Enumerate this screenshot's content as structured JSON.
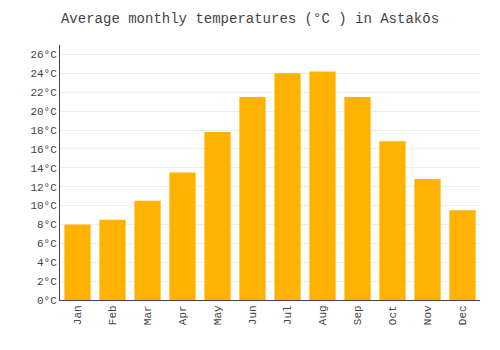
{
  "chart_data": {
    "type": "bar",
    "title": "Average monthly temperatures (°C ) in Astakōs",
    "categories": [
      "Jan",
      "Feb",
      "Mar",
      "Apr",
      "May",
      "Jun",
      "Jul",
      "Aug",
      "Sep",
      "Oct",
      "Nov",
      "Dec"
    ],
    "values": [
      8.0,
      8.5,
      10.5,
      13.5,
      17.8,
      21.5,
      24.0,
      24.2,
      21.5,
      16.8,
      12.8,
      9.5
    ],
    "color": "#FFB300",
    "ylim": [
      0,
      27
    ],
    "yticks": [
      {
        "value": 0,
        "label": "0°C"
      },
      {
        "value": 2,
        "label": "2°C"
      },
      {
        "value": 4,
        "label": "4°C"
      },
      {
        "value": 6,
        "label": "6°C"
      },
      {
        "value": 8,
        "label": "8°C"
      },
      {
        "value": 10,
        "label": "10°C"
      },
      {
        "value": 12,
        "label": "12°C"
      },
      {
        "value": 14,
        "label": "14°C"
      },
      {
        "value": 16,
        "label": "16°C"
      },
      {
        "value": 18,
        "label": "18°C"
      },
      {
        "value": 20,
        "label": "20°C"
      },
      {
        "value": 22,
        "label": "22°C"
      },
      {
        "value": 24,
        "label": "24°C"
      },
      {
        "value": 26,
        "label": "26°C"
      }
    ],
    "grid": true
  }
}
